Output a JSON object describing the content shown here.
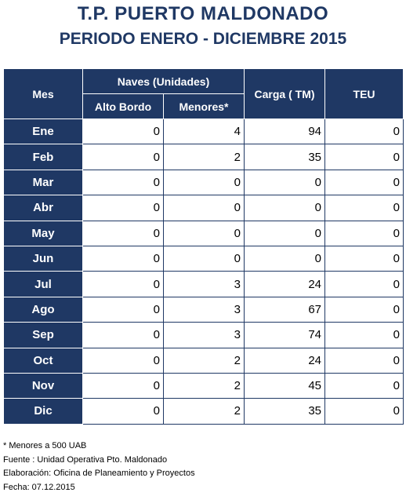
{
  "title": "T.P. PUERTO MALDONADO",
  "subtitle": "PERIODO ENERO - DICIEMBRE 2015",
  "table": {
    "headers": {
      "mes": "Mes",
      "naves": "Naves (Unidades)",
      "alto_bordo": "Alto Bordo",
      "menores": "Menores*",
      "carga": "Carga ( TM)",
      "teu": "TEU"
    },
    "rows": [
      {
        "mes": "Ene",
        "alto_bordo": "0",
        "menores": "4",
        "carga": "94",
        "teu": "0"
      },
      {
        "mes": "Feb",
        "alto_bordo": "0",
        "menores": "2",
        "carga": "35",
        "teu": "0"
      },
      {
        "mes": "Mar",
        "alto_bordo": "0",
        "menores": "0",
        "carga": "0",
        "teu": "0"
      },
      {
        "mes": "Abr",
        "alto_bordo": "0",
        "menores": "0",
        "carga": "0",
        "teu": "0"
      },
      {
        "mes": "May",
        "alto_bordo": "0",
        "menores": "0",
        "carga": "0",
        "teu": "0"
      },
      {
        "mes": "Jun",
        "alto_bordo": "0",
        "menores": "0",
        "carga": "0",
        "teu": "0"
      },
      {
        "mes": "Jul",
        "alto_bordo": "0",
        "menores": "3",
        "carga": "24",
        "teu": "0"
      },
      {
        "mes": "Ago",
        "alto_bordo": "0",
        "menores": "3",
        "carga": "67",
        "teu": "0"
      },
      {
        "mes": "Sep",
        "alto_bordo": "0",
        "menores": "3",
        "carga": "74",
        "teu": "0"
      },
      {
        "mes": "Oct",
        "alto_bordo": "0",
        "menores": "2",
        "carga": "24",
        "teu": "0"
      },
      {
        "mes": "Nov",
        "alto_bordo": "0",
        "menores": "2",
        "carga": "45",
        "teu": "0"
      },
      {
        "mes": "Dic",
        "alto_bordo": "0",
        "menores": "2",
        "carga": "35",
        "teu": "0"
      }
    ]
  },
  "footnotes": [
    "* Menores a 500 UAB",
    "Fuente : Unidad Operativa Pto. Maldonado",
    "Elaboración: Oficina de Planeamiento y Proyectos",
    "Fecha: 07.12.2015"
  ],
  "colors": {
    "header_bg": "#1f3864",
    "title_text": "#1f3864",
    "cell_border": "#1f3864"
  }
}
